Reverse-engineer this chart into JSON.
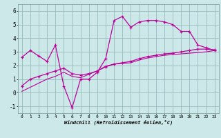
{
  "xlabel": "Windchill (Refroidissement éolien,°C)",
  "xlim": [
    -0.5,
    23.5
  ],
  "ylim": [
    -1.5,
    6.5
  ],
  "ylim_display": [
    -1,
    6
  ],
  "xticks": [
    0,
    1,
    2,
    3,
    4,
    5,
    6,
    7,
    8,
    9,
    10,
    11,
    12,
    13,
    14,
    15,
    16,
    17,
    18,
    19,
    20,
    21,
    22,
    23
  ],
  "yticks": [
    -1,
    0,
    1,
    2,
    3,
    4,
    5,
    6
  ],
  "bg_color": "#cce8e8",
  "line_color": "#bb0099",
  "grid_color": "#99bbbb",
  "curve1_x": [
    0,
    1,
    2,
    3,
    4,
    5,
    6,
    7,
    8,
    9,
    10,
    11,
    12,
    13,
    14,
    15,
    16,
    17,
    18,
    19,
    20,
    21,
    22,
    23
  ],
  "curve1_y": [
    2.6,
    3.1,
    2.7,
    2.3,
    3.5,
    0.5,
    -1.1,
    1.0,
    1.0,
    1.5,
    2.5,
    5.3,
    5.6,
    4.8,
    5.2,
    5.3,
    5.3,
    5.2,
    5.0,
    4.5,
    4.5,
    3.5,
    3.3,
    3.1
  ],
  "curve2_x": [
    0,
    1,
    2,
    3,
    4,
    5,
    6,
    7,
    8,
    9,
    10,
    11,
    12,
    13,
    14,
    15,
    16,
    17,
    18,
    19,
    20,
    21,
    22,
    23
  ],
  "curve2_y": [
    0.5,
    1.0,
    1.2,
    1.4,
    1.6,
    1.8,
    1.4,
    1.3,
    1.4,
    1.6,
    1.9,
    2.1,
    2.2,
    2.3,
    2.5,
    2.65,
    2.75,
    2.85,
    2.9,
    3.0,
    3.1,
    3.2,
    3.2,
    3.15
  ],
  "curve3_x": [
    0,
    1,
    2,
    3,
    4,
    5,
    6,
    7,
    8,
    9,
    10,
    11,
    12,
    13,
    14,
    15,
    16,
    17,
    18,
    19,
    20,
    21,
    22,
    23
  ],
  "curve3_y": [
    0.1,
    0.4,
    0.7,
    1.0,
    1.2,
    1.5,
    1.2,
    1.1,
    1.35,
    1.6,
    1.95,
    2.1,
    2.15,
    2.2,
    2.4,
    2.55,
    2.65,
    2.75,
    2.8,
    2.85,
    2.9,
    2.95,
    3.0,
    3.1
  ]
}
